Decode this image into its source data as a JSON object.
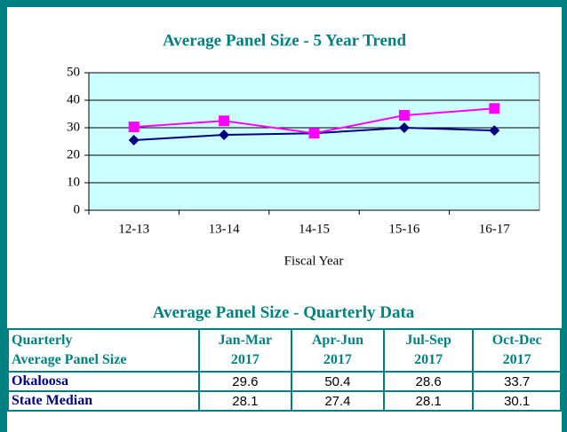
{
  "chart_data": {
    "type": "line",
    "title": "Average Panel Size - 5 Year Trend",
    "xlabel": "Fiscal Year",
    "categories": [
      "12-13",
      "13-14",
      "14-15",
      "15-16",
      "16-17"
    ],
    "series": [
      {
        "color": "#000080",
        "marker": "diamond",
        "values": [
          25.5,
          27.4,
          28,
          30,
          29
        ]
      },
      {
        "color": "#ff00ff",
        "marker": "square",
        "values": [
          30.3,
          32.5,
          28,
          34.5,
          37
        ]
      }
    ],
    "ylim": [
      0,
      50
    ],
    "yticks": [
      0,
      10,
      20,
      30,
      40,
      50
    ],
    "grid": true
  },
  "table": {
    "title": "Average Panel Size - Quarterly Data",
    "header": [
      [
        "Quarterly",
        "Average Panel Size"
      ],
      [
        "Jan-Mar",
        "2017"
      ],
      [
        "Apr-Jun",
        "2017"
      ],
      [
        "Jul-Sep",
        "2017"
      ],
      [
        "Oct-Dec",
        "2017"
      ]
    ],
    "rows": [
      [
        "Okaloosa",
        "29.6",
        "50.4",
        "28.6",
        "33.7"
      ],
      [
        "State Median",
        "28.1",
        "27.4",
        "28.1",
        "30.1"
      ]
    ]
  }
}
